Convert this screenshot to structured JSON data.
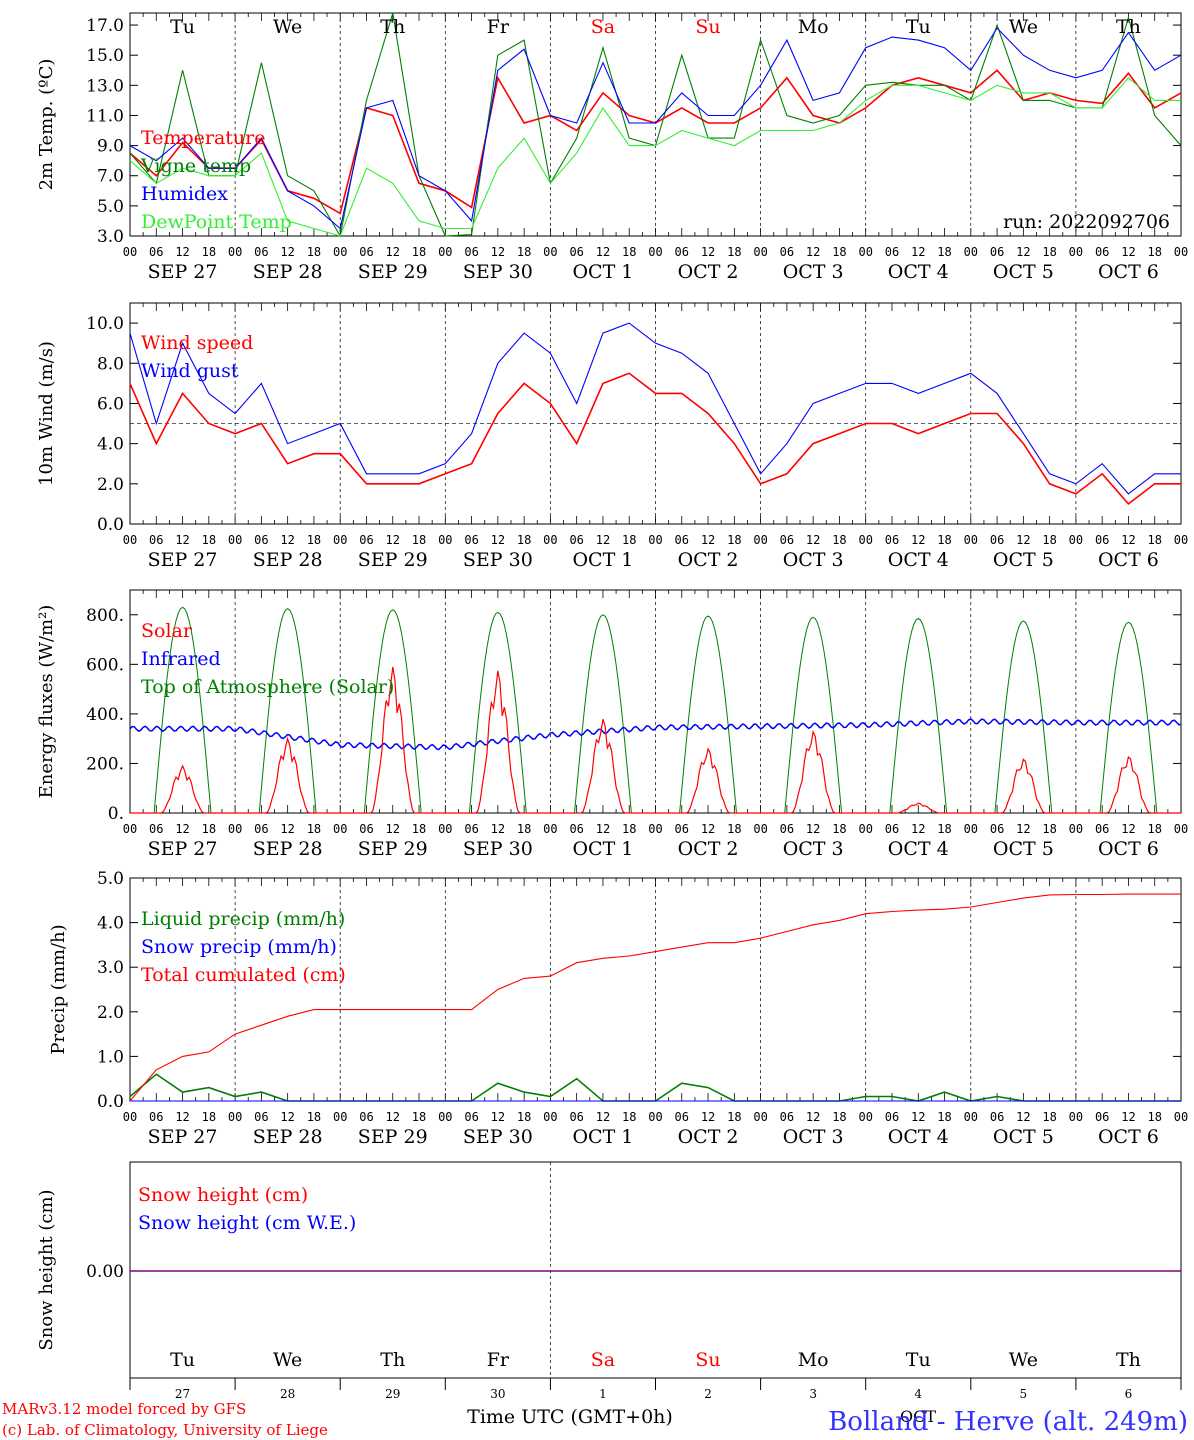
{
  "chart_data": [
    {
      "id": "temperature",
      "type": "line",
      "ylabel": "2m Temp. (ºC)",
      "ylim": [
        3.0,
        17.8
      ],
      "yticks": [
        "3.0",
        "5.0",
        "7.0",
        "9.0",
        "11.0",
        "13.0",
        "15.0",
        "17.0"
      ],
      "run_label": "run: 2022092706",
      "legend_placement": "left",
      "grid": "vertical dashed day separators",
      "x_hours": [
        0,
        6,
        12,
        18,
        24,
        30,
        36,
        42,
        48,
        54,
        60,
        66,
        72,
        78,
        84,
        90,
        96,
        102,
        108,
        114,
        120,
        126,
        132,
        138,
        144,
        150,
        156,
        162,
        168,
        174,
        180,
        186,
        192,
        198,
        204,
        210,
        216,
        222,
        228,
        234,
        240
      ],
      "series": [
        {
          "name": "Temperature",
          "color": "#ff0000",
          "values": [
            8.5,
            7.0,
            9.2,
            7.5,
            7.5,
            9.4,
            6.0,
            5.5,
            4.5,
            11.5,
            11.0,
            6.5,
            6.0,
            4.9,
            13.5,
            10.5,
            11.0,
            10.0,
            12.5,
            11.0,
            10.5,
            11.5,
            10.5,
            10.5,
            11.5,
            13.5,
            11.0,
            10.5,
            11.5,
            13.0,
            13.5,
            13.0,
            12.5,
            14.0,
            12.0,
            12.5,
            12.0,
            11.8,
            13.8,
            11.5,
            12.5
          ]
        },
        {
          "name": "Vigne temp",
          "color": "#008000",
          "values": [
            8.5,
            6.5,
            14.0,
            7.0,
            7.0,
            14.5,
            7.0,
            6.0,
            3.0,
            12.0,
            17.8,
            7.0,
            3.0,
            3.1,
            15.0,
            16.0,
            6.5,
            9.5,
            15.5,
            9.5,
            9.0,
            15.0,
            9.5,
            9.5,
            16.0,
            11.0,
            10.5,
            11.0,
            13.0,
            13.2,
            13.0,
            13.0,
            12.0,
            17.0,
            12.0,
            12.0,
            11.5,
            11.5,
            17.5,
            11.0,
            9.0
          ]
        },
        {
          "name": "Humidex",
          "color": "#0000ff",
          "values": [
            9.0,
            8.0,
            9.5,
            7.5,
            7.5,
            9.5,
            6.0,
            5.0,
            3.5,
            11.5,
            12.0,
            7.0,
            6.0,
            4.0,
            14.0,
            15.4,
            11.0,
            10.5,
            14.5,
            10.5,
            10.5,
            12.5,
            11.0,
            11.0,
            13.0,
            16.0,
            12.0,
            12.5,
            15.5,
            16.2,
            16.0,
            15.5,
            14.0,
            16.8,
            15.0,
            14.0,
            13.5,
            14.0,
            16.5,
            14.0,
            15.0
          ]
        },
        {
          "name": "DewPoint Temp",
          "color": "#33ee33",
          "values": [
            8.0,
            6.5,
            7.5,
            7.0,
            7.0,
            8.5,
            4.0,
            3.5,
            3.0,
            7.5,
            6.5,
            4.0,
            3.5,
            3.5,
            7.5,
            9.5,
            6.5,
            8.5,
            11.5,
            9.0,
            9.0,
            10.0,
            9.5,
            9.0,
            10.0,
            10.0,
            10.0,
            10.5,
            12.0,
            13.0,
            13.0,
            12.5,
            12.0,
            13.0,
            12.5,
            12.5,
            11.5,
            11.5,
            13.5,
            12.0,
            12.0
          ]
        }
      ]
    },
    {
      "id": "wind",
      "type": "line",
      "ylabel": "10m Wind (m/s)",
      "ylim": [
        0.0,
        11.0
      ],
      "yticks": [
        "0.0",
        "2.0",
        "4.0",
        "6.0",
        "8.0",
        "10.0"
      ],
      "reference_line": 5.0,
      "legend_placement": "left",
      "x_hours": [
        0,
        6,
        12,
        18,
        24,
        30,
        36,
        42,
        48,
        54,
        60,
        66,
        72,
        78,
        84,
        90,
        96,
        102,
        108,
        114,
        120,
        126,
        132,
        138,
        144,
        150,
        156,
        162,
        168,
        174,
        180,
        186,
        192,
        198,
        204,
        210,
        216,
        222,
        228,
        234,
        240
      ],
      "series": [
        {
          "name": "Wind speed",
          "color": "#ff0000",
          "values": [
            7.0,
            4.0,
            6.5,
            5.0,
            4.5,
            5.0,
            3.0,
            3.5,
            3.5,
            2.0,
            2.0,
            2.0,
            2.5,
            3.0,
            5.5,
            7.0,
            6.0,
            4.0,
            7.0,
            7.5,
            6.5,
            6.5,
            5.5,
            4.0,
            2.0,
            2.5,
            4.0,
            4.5,
            5.0,
            5.0,
            4.5,
            5.0,
            5.5,
            5.5,
            4.0,
            2.0,
            1.5,
            2.5,
            1.0,
            2.0,
            2.0
          ]
        },
        {
          "name": "Wind gust",
          "color": "#0000ff",
          "values": [
            9.5,
            5.0,
            9.0,
            6.5,
            5.5,
            7.0,
            4.0,
            4.5,
            5.0,
            2.5,
            2.5,
            2.5,
            3.0,
            4.5,
            8.0,
            9.5,
            8.5,
            6.0,
            9.5,
            10.0,
            9.0,
            8.5,
            7.5,
            5.0,
            2.5,
            4.0,
            6.0,
            6.5,
            7.0,
            7.0,
            6.5,
            7.0,
            7.5,
            6.5,
            4.5,
            2.5,
            2.0,
            3.0,
            1.5,
            2.5,
            2.5
          ]
        }
      ]
    },
    {
      "id": "energy",
      "type": "line",
      "ylabel": "Energy fluxes (W/m²)",
      "ylim": [
        0,
        900
      ],
      "yticks": [
        "0.",
        "200.",
        "400.",
        "600.",
        "800."
      ],
      "legend_placement": "left",
      "solar_peaks": [
        190,
        300,
        590,
        575,
        380,
        260,
        330,
        40,
        220,
        230
      ],
      "toa_peaks": [
        830,
        825,
        820,
        810,
        800,
        795,
        790,
        785,
        775,
        770
      ],
      "infrared": [
        340,
        340,
        275,
        265,
        315,
        345,
        350,
        355,
        370,
        365
      ],
      "series": [
        {
          "name": "Solar",
          "color": "#ff0000"
        },
        {
          "name": "Infrared",
          "color": "#0000ff"
        },
        {
          "name": "Top of Atmosphere (Solar)",
          "color": "#008000"
        }
      ]
    },
    {
      "id": "precip",
      "type": "line",
      "ylabel": "Precip (mm/h)",
      "ylim": [
        0.0,
        5.0
      ],
      "yticks": [
        "0.0",
        "1.0",
        "2.0",
        "3.0",
        "4.0",
        "5.0"
      ],
      "legend_placement": "left",
      "x_hours": [
        0,
        6,
        12,
        18,
        24,
        30,
        36,
        42,
        48,
        54,
        60,
        66,
        72,
        78,
        84,
        90,
        96,
        102,
        108,
        114,
        120,
        126,
        132,
        138,
        144,
        150,
        156,
        162,
        168,
        174,
        180,
        186,
        192,
        198,
        204,
        210,
        216,
        222,
        228,
        234,
        240
      ],
      "series": [
        {
          "name": "Liquid precip (mm/h)",
          "color": "#008000",
          "values": [
            0.1,
            0.6,
            0.2,
            0.3,
            0.1,
            0.2,
            0.0,
            0.0,
            0.0,
            0.0,
            0.0,
            0.0,
            0.0,
            0.0,
            0.4,
            0.2,
            0.1,
            0.5,
            0.0,
            0.0,
            0.0,
            0.4,
            0.3,
            0.0,
            0.0,
            0.0,
            0.0,
            0.0,
            0.1,
            0.1,
            0.0,
            0.2,
            0.0,
            0.1,
            0.0,
            0.0,
            0.0,
            0.0,
            0.0,
            0.0,
            0.0
          ]
        },
        {
          "name": "Snow precip (mm/h)",
          "color": "#0000ff",
          "values": [
            0,
            0,
            0,
            0,
            0,
            0,
            0,
            0,
            0,
            0,
            0,
            0,
            0,
            0,
            0,
            0,
            0,
            0,
            0,
            0,
            0,
            0,
            0,
            0,
            0,
            0,
            0,
            0,
            0,
            0,
            0,
            0,
            0,
            0,
            0,
            0,
            0,
            0,
            0,
            0,
            0
          ]
        },
        {
          "name": "Total cumulated (cm)",
          "color": "#ff0000",
          "values": [
            0.0,
            0.7,
            1.0,
            1.1,
            1.5,
            1.7,
            1.9,
            2.05,
            2.05,
            2.05,
            2.05,
            2.05,
            2.05,
            2.05,
            2.5,
            2.75,
            2.8,
            3.1,
            3.2,
            3.25,
            3.35,
            3.45,
            3.55,
            3.55,
            3.65,
            3.8,
            3.95,
            4.05,
            4.2,
            4.25,
            4.28,
            4.3,
            4.35,
            4.45,
            4.55,
            4.62,
            4.63,
            4.63,
            4.64,
            4.64,
            4.64
          ]
        }
      ]
    },
    {
      "id": "snow",
      "type": "line",
      "ylabel": "Snow height (cm)",
      "yticks": [
        "0.00"
      ],
      "legend_placement": "left",
      "series": [
        {
          "name": "Snow height (cm)",
          "color": "#ff0000",
          "value": 0.0
        },
        {
          "name": "Snow height (cm W.E.)",
          "color": "#0000ff",
          "value": 0.0
        }
      ]
    }
  ],
  "time_axis": {
    "hour_labels": [
      "00",
      "06",
      "12",
      "18"
    ],
    "end_label": "00",
    "dates": [
      "SEP 27",
      "SEP 28",
      "SEP 29",
      "SEP 30",
      "OCT  1",
      "OCT  2",
      "OCT  3",
      "OCT  4",
      "OCT  5",
      "OCT  6"
    ],
    "weekdays": [
      "Tu",
      "We",
      "Th",
      "Fr",
      "Sa",
      "Su",
      "Mo",
      "Tu",
      "We",
      "Th"
    ],
    "weekend_color": "#ff0000",
    "day_numbers": [
      "27",
      "28",
      "29",
      "30",
      "1",
      "2",
      "3",
      "4",
      "5",
      "6"
    ],
    "month_label": "OCT",
    "xlabel": "Time UTC (GMT+0h)"
  },
  "footer": {
    "model_line": "MARv3.12 model forced by GFS",
    "copyright_line": "(c) Lab. of Climatology, University of Liege",
    "station": "Bolland - Herve (alt. 249m)"
  }
}
